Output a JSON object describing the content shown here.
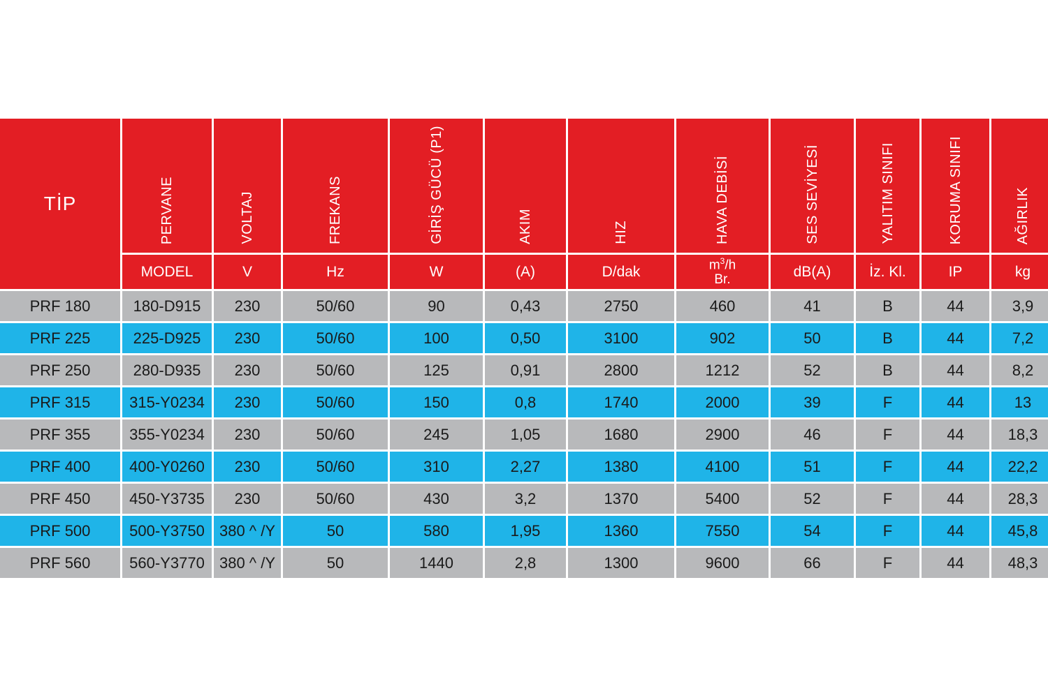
{
  "table": {
    "tip_header": "TİP",
    "columns": [
      {
        "title": "PERVANE",
        "unit": "MODEL"
      },
      {
        "title": "VOLTAJ",
        "unit": "V"
      },
      {
        "title": "FREKANS",
        "unit": "Hz"
      },
      {
        "title": "GİRİŞ GÜCÜ (P1)",
        "unit": "W"
      },
      {
        "title": "AKIM",
        "unit": "(A)"
      },
      {
        "title": "HIZ",
        "unit": "D/dak"
      },
      {
        "title": "HAVA DEBİSİ",
        "unit_line1": "m",
        "unit_sup": "3",
        "unit_line1_rest": "/h",
        "unit_line2": "Br."
      },
      {
        "title": "SES SEVİYESİ",
        "unit": "dB(A)"
      },
      {
        "title": "YALITIM SINIFI",
        "unit": "İz. Kl."
      },
      {
        "title": "KORUMA SINIFI",
        "unit": "IP"
      },
      {
        "title": "AĞIRLIK",
        "unit": "kg"
      }
    ],
    "rows": [
      [
        "PRF 180",
        "180-D915",
        "230",
        "50/60",
        "90",
        "0,43",
        "2750",
        "460",
        "41",
        "B",
        "44",
        "3,9"
      ],
      [
        "PRF 225",
        "225-D925",
        "230",
        "50/60",
        "100",
        "0,50",
        "3100",
        "902",
        "50",
        "B",
        "44",
        "7,2"
      ],
      [
        "PRF 250",
        "280-D935",
        "230",
        "50/60",
        "125",
        "0,91",
        "2800",
        "1212",
        "52",
        "B",
        "44",
        "8,2"
      ],
      [
        "PRF 315",
        "315-Y0234",
        "230",
        "50/60",
        "150",
        "0,8",
        "1740",
        "2000",
        "39",
        "F",
        "44",
        "13"
      ],
      [
        "PRF 355",
        "355-Y0234",
        "230",
        "50/60",
        "245",
        "1,05",
        "1680",
        "2900",
        "46",
        "F",
        "44",
        "18,3"
      ],
      [
        "PRF 400",
        "400-Y0260",
        "230",
        "50/60",
        "310",
        "2,27",
        "1380",
        "4100",
        "51",
        "F",
        "44",
        "22,2"
      ],
      [
        "PRF 450",
        "450-Y3735",
        "230",
        "50/60",
        "430",
        "3,2",
        "1370",
        "5400",
        "52",
        "F",
        "44",
        "28,3"
      ],
      [
        "PRF 500",
        "500-Y3750",
        "380 ^ /Y",
        "50",
        "580",
        "1,95",
        "1360",
        "7550",
        "54",
        "F",
        "44",
        "45,8"
      ],
      [
        "PRF 560",
        "560-Y3770",
        "380 ^ /Y",
        "50",
        "1440",
        "2,8",
        "1300",
        "9600",
        "66",
        "F",
        "44",
        "48,3"
      ]
    ]
  },
  "colors": {
    "header_red": "#e31e24",
    "row_gray": "#b8b9bb",
    "row_blue": "#1fb4e8"
  }
}
